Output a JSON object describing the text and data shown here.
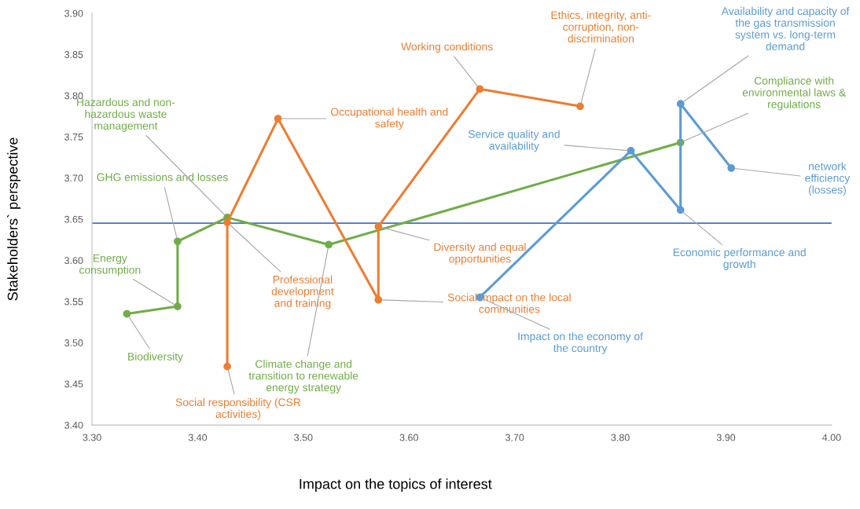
{
  "chart_data": {
    "type": "line",
    "xlabel": "Impact on the topics of interest",
    "ylabel": "Stakeholders` perspective",
    "xlim": [
      3.3,
      4.0
    ],
    "ylim": [
      3.4,
      3.9
    ],
    "xticks": [
      {
        "value": 3.3,
        "label": "3.30"
      },
      {
        "value": 3.4,
        "label": "3.40"
      },
      {
        "value": 3.5,
        "label": "3.50"
      },
      {
        "value": 3.6,
        "label": "3.60"
      },
      {
        "value": 3.7,
        "label": "3.70"
      },
      {
        "value": 3.8,
        "label": "3.80"
      },
      {
        "value": 3.9,
        "label": "3.90"
      },
      {
        "value": 4.0,
        "label": "4.00"
      }
    ],
    "yticks": [
      {
        "value": 3.4,
        "label": "3.40"
      },
      {
        "value": 3.45,
        "label": "3.45"
      },
      {
        "value": 3.5,
        "label": "3.50"
      },
      {
        "value": 3.55,
        "label": "3.55"
      },
      {
        "value": 3.6,
        "label": "3.60"
      },
      {
        "value": 3.65,
        "label": "3.65"
      },
      {
        "value": 3.7,
        "label": "3.70"
      },
      {
        "value": 3.75,
        "label": "3.75"
      },
      {
        "value": 3.8,
        "label": "3.80"
      },
      {
        "value": 3.85,
        "label": "3.85"
      },
      {
        "value": 3.9,
        "label": "3.90"
      }
    ],
    "grid": false,
    "legend": false,
    "marker": "circle",
    "line_style": "solid",
    "series": [
      {
        "color": "#70ad47",
        "x": [
          3.333,
          3.381,
          3.381,
          3.428,
          3.524,
          3.857
        ],
        "values": [
          3.535,
          3.544,
          3.623,
          3.652,
          3.619,
          3.743
        ]
      },
      {
        "color": "#ed7d31",
        "x": [
          3.428,
          3.428,
          3.476,
          3.571,
          3.571,
          3.667,
          3.762
        ],
        "values": [
          3.471,
          3.646,
          3.772,
          3.552,
          3.641,
          3.808,
          3.787
        ]
      },
      {
        "color": "#5b9bd5",
        "x": [
          3.667,
          3.81,
          3.857,
          3.857,
          3.905
        ],
        "values": [
          3.555,
          3.733,
          3.661,
          3.79,
          3.712
        ]
      }
    ],
    "ref_lines": [
      {
        "axis": "y",
        "value": 3.645,
        "color": "#4472c4"
      }
    ],
    "annotations": [
      {
        "text": "Biodiversity",
        "x": 3.333,
        "y": 3.535
      },
      {
        "text": "Energy\nconsumption",
        "x": 3.381,
        "y": 3.544
      },
      {
        "text": "GHG emissions and losses",
        "x": 3.381,
        "y": 3.623
      },
      {
        "text": "Hazardous and non-\nhazardous waste\nmanagement",
        "x": 3.428,
        "y": 3.652
      },
      {
        "text": "Climate change and\ntransition to renewable\nenergy strategy",
        "x": 3.524,
        "y": 3.619
      },
      {
        "text": "Compliance with\nenvironmental laws &\nregulations",
        "x": 3.857,
        "y": 3.743
      },
      {
        "text": "Social responsibility (CSR\nactivities)",
        "x": 3.428,
        "y": 3.471
      },
      {
        "text": "Professional\ndevelopment\nand training",
        "x": 3.428,
        "y": 3.646
      },
      {
        "text": "Occupational health and\nsafety",
        "x": 3.476,
        "y": 3.772
      },
      {
        "text": "Social impact on the local\ncommunities",
        "x": 3.571,
        "y": 3.552
      },
      {
        "text": "Diversity and equal\nopportunities",
        "x": 3.571,
        "y": 3.641
      },
      {
        "text": "Working conditions",
        "x": 3.667,
        "y": 3.808
      },
      {
        "text": "Ethics, integrity, anti-\ncorruption, non-\ndiscrimination",
        "x": 3.762,
        "y": 3.787
      },
      {
        "text": "Impact on the economy of\nthe country",
        "x": 3.667,
        "y": 3.555
      },
      {
        "text": "Service quality and\navailability",
        "x": 3.81,
        "y": 3.733
      },
      {
        "text": "Economic performance and\ngrowth",
        "x": 3.857,
        "y": 3.661
      },
      {
        "text": "Availability and capacity of\nthe gas transmission\nsystem vs. long-term\ndemand",
        "x": 3.857,
        "y": 3.79
      },
      {
        "text": "network\nefficiency\n(losses)",
        "x": 3.905,
        "y": 3.712
      }
    ]
  }
}
